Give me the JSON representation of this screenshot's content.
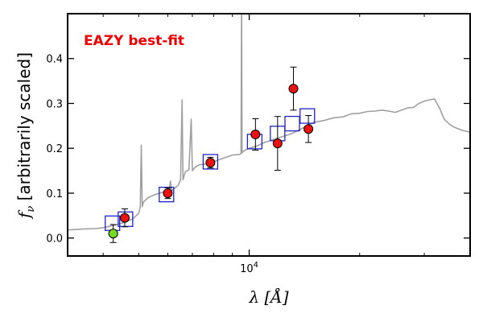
{
  "chart_data": {
    "type": "scatter",
    "title": "",
    "annotation": "EAZY best-fit",
    "annotation_color": "#ee0000",
    "xlabel": "λ [Å]",
    "ylabel": "f_ν [arbitrarily scaled]",
    "ylabel_symbol": "f",
    "ylabel_sub": "ν",
    "ylabel_text": "[arbitrarily scaled]",
    "xlabel_symbol": "λ",
    "xlabel_unit": "[Å]",
    "x_scale": "log",
    "xlim": [
      3200,
      40000
    ],
    "ylim": [
      -0.04,
      0.5
    ],
    "yticks": [
      0.0,
      0.1,
      0.2,
      0.3,
      0.4
    ],
    "ytick_labels": [
      "0.0",
      "0.1",
      "0.2",
      "0.3",
      "0.4"
    ],
    "xtick_major": [
      10000
    ],
    "xtick_major_labels": [
      "10",
      "4"
    ],
    "xtick_minor": [
      4000,
      5000,
      6000,
      7000,
      8000,
      9000,
      20000,
      30000,
      40000
    ],
    "grid": false,
    "colors": {
      "spectrum": "#a0a0a0",
      "model_box": "#2222cc",
      "detection": "#ee1111",
      "nondetection": "#77dd22",
      "errorbar": "#000000"
    },
    "model_fit": {
      "x": [
        4240,
        4600,
        5950,
        7840,
        10350,
        11950,
        13100,
        14400
      ],
      "y": [
        0.033,
        0.042,
        0.097,
        0.17,
        0.215,
        0.233,
        0.255,
        0.272
      ]
    },
    "observed": [
      {
        "x": 4260,
        "y": 0.01,
        "err": 0.02,
        "kind": "nondetection"
      },
      {
        "x": 4580,
        "y": 0.045,
        "err": 0.02,
        "kind": "detection"
      },
      {
        "x": 6000,
        "y": 0.1,
        "err": 0.012,
        "kind": "detection"
      },
      {
        "x": 7840,
        "y": 0.168,
        "err": 0.012,
        "kind": "detection"
      },
      {
        "x": 10400,
        "y": 0.231,
        "err": 0.035,
        "kind": "detection"
      },
      {
        "x": 11950,
        "y": 0.211,
        "err": 0.06,
        "kind": "detection"
      },
      {
        "x": 13200,
        "y": 0.333,
        "err": 0.048,
        "kind": "detection"
      },
      {
        "x": 14500,
        "y": 0.243,
        "err": 0.03,
        "kind": "detection"
      }
    ],
    "spectrum": {
      "x": [
        3200,
        3500,
        3800,
        4000,
        4200,
        4500,
        4800,
        5000,
        5050,
        5080,
        5110,
        5150,
        5300,
        5500,
        5700,
        5900,
        6050,
        6100,
        6150,
        6300,
        6400,
        6500,
        6563,
        6600,
        6700,
        6850,
        6950,
        7000,
        7100,
        7300,
        7600,
        8000,
        8500,
        9000,
        9400,
        9500,
        9532,
        9560,
        9700,
        10000,
        10500,
        11000,
        12000,
        13000,
        14000,
        15000,
        16000,
        17000,
        18000,
        19000,
        20000,
        21000,
        22000,
        23000,
        24000,
        25000,
        26000,
        27000,
        28000,
        29000,
        30000,
        31000,
        32000,
        33000,
        34000,
        35000,
        36000,
        38000,
        40000
      ],
      "y": [
        0.018,
        0.02,
        0.021,
        0.023,
        0.027,
        0.033,
        0.042,
        0.055,
        0.07,
        0.207,
        0.07,
        0.08,
        0.09,
        0.096,
        0.1,
        0.104,
        0.1,
        0.127,
        0.105,
        0.113,
        0.117,
        0.13,
        0.308,
        0.13,
        0.148,
        0.152,
        0.265,
        0.15,
        0.157,
        0.163,
        0.165,
        0.17,
        0.178,
        0.185,
        0.186,
        0.188,
        0.515,
        0.19,
        0.195,
        0.2,
        0.205,
        0.213,
        0.223,
        0.232,
        0.245,
        0.258,
        0.262,
        0.268,
        0.27,
        0.277,
        0.278,
        0.282,
        0.283,
        0.285,
        0.283,
        0.28,
        0.285,
        0.29,
        0.291,
        0.3,
        0.305,
        0.308,
        0.31,
        0.29,
        0.265,
        0.255,
        0.248,
        0.24,
        0.236
      ]
    }
  }
}
